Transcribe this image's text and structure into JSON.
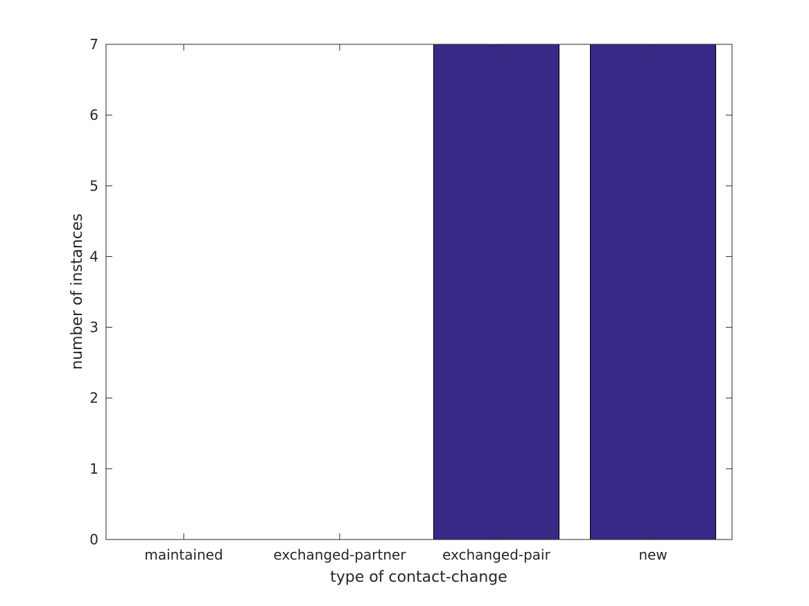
{
  "chart_data": {
    "type": "bar",
    "categories": [
      "maintained",
      "exchanged-partner",
      "exchanged-pair",
      "new"
    ],
    "values": [
      0,
      0,
      7,
      7
    ],
    "xlabel": "type of contact-change",
    "ylabel": "number of instances",
    "ylim": [
      0,
      7
    ],
    "yticks": [
      0,
      1,
      2,
      3,
      4,
      5,
      6,
      7
    ],
    "bar_color": "#372a86",
    "grid": false
  }
}
